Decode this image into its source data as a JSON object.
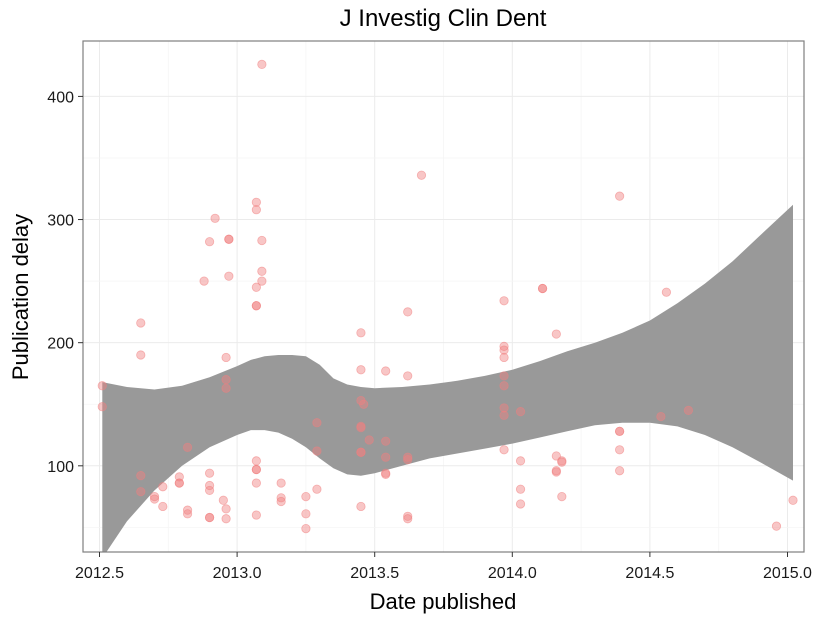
{
  "chart_data": {
    "type": "scatter",
    "title": "J Investig Clin Dent",
    "xlabel": "Date published",
    "ylabel": "Publication delay",
    "xlim": [
      2012.44,
      2015.06
    ],
    "ylim": [
      30,
      445
    ],
    "x_ticks": [
      2012.5,
      2013.0,
      2013.5,
      2014.0,
      2014.5,
      2015.0
    ],
    "x_tick_labels": [
      "2012.5",
      "2013.0",
      "2013.5",
      "2014.0",
      "2014.5",
      "2015.0"
    ],
    "y_ticks": [
      100,
      200,
      300,
      400
    ],
    "y_tick_labels": [
      "100",
      "200",
      "300",
      "400"
    ],
    "grid": true,
    "point_color": "#f08080",
    "band_color": "#999999",
    "points": [
      [
        2012.51,
        165
      ],
      [
        2012.51,
        148
      ],
      [
        2012.65,
        216
      ],
      [
        2012.65,
        190
      ],
      [
        2012.65,
        92
      ],
      [
        2012.65,
        79
      ],
      [
        2012.7,
        75
      ],
      [
        2012.7,
        73
      ],
      [
        2012.73,
        83
      ],
      [
        2012.73,
        67
      ],
      [
        2012.79,
        91
      ],
      [
        2012.79,
        86
      ],
      [
        2012.79,
        86
      ],
      [
        2012.82,
        115
      ],
      [
        2012.82,
        64
      ],
      [
        2012.82,
        61
      ],
      [
        2012.88,
        250
      ],
      [
        2012.9,
        282
      ],
      [
        2012.9,
        94
      ],
      [
        2012.9,
        84
      ],
      [
        2012.9,
        80
      ],
      [
        2012.9,
        58
      ],
      [
        2012.9,
        58
      ],
      [
        2012.92,
        301
      ],
      [
        2012.95,
        72
      ],
      [
        2012.96,
        188
      ],
      [
        2012.96,
        170
      ],
      [
        2012.96,
        163
      ],
      [
        2012.96,
        65
      ],
      [
        2012.96,
        57
      ],
      [
        2012.97,
        284
      ],
      [
        2012.97,
        254
      ],
      [
        2012.97,
        284
      ],
      [
        2013.07,
        314
      ],
      [
        2013.07,
        308
      ],
      [
        2013.07,
        245
      ],
      [
        2013.07,
        230
      ],
      [
        2013.07,
        230
      ],
      [
        2013.07,
        104
      ],
      [
        2013.07,
        97
      ],
      [
        2013.07,
        97
      ],
      [
        2013.07,
        86
      ],
      [
        2013.07,
        60
      ],
      [
        2013.09,
        426
      ],
      [
        2013.09,
        283
      ],
      [
        2013.09,
        258
      ],
      [
        2013.09,
        250
      ],
      [
        2013.16,
        86
      ],
      [
        2013.16,
        74
      ],
      [
        2013.16,
        71
      ],
      [
        2013.25,
        75
      ],
      [
        2013.25,
        61
      ],
      [
        2013.25,
        49
      ],
      [
        2013.29,
        135
      ],
      [
        2013.29,
        112
      ],
      [
        2013.29,
        81
      ],
      [
        2013.45,
        208
      ],
      [
        2013.45,
        178
      ],
      [
        2013.45,
        153
      ],
      [
        2013.45,
        132
      ],
      [
        2013.45,
        131
      ],
      [
        2013.45,
        111
      ],
      [
        2013.45,
        111
      ],
      [
        2013.45,
        67
      ],
      [
        2013.46,
        150
      ],
      [
        2013.48,
        121
      ],
      [
        2013.54,
        177
      ],
      [
        2013.54,
        120
      ],
      [
        2013.54,
        107
      ],
      [
        2013.54,
        94
      ],
      [
        2013.54,
        93
      ],
      [
        2013.62,
        225
      ],
      [
        2013.62,
        173
      ],
      [
        2013.62,
        107
      ],
      [
        2013.62,
        105
      ],
      [
        2013.62,
        59
      ],
      [
        2013.62,
        57
      ],
      [
        2013.67,
        336
      ],
      [
        2013.97,
        234
      ],
      [
        2013.97,
        197
      ],
      [
        2013.97,
        194
      ],
      [
        2013.97,
        188
      ],
      [
        2013.97,
        173
      ],
      [
        2013.97,
        165
      ],
      [
        2013.97,
        147
      ],
      [
        2013.97,
        141
      ],
      [
        2013.97,
        113
      ],
      [
        2014.03,
        144
      ],
      [
        2014.03,
        104
      ],
      [
        2014.03,
        81
      ],
      [
        2014.03,
        69
      ],
      [
        2014.11,
        244
      ],
      [
        2014.11,
        244
      ],
      [
        2014.16,
        207
      ],
      [
        2014.16,
        108
      ],
      [
        2014.16,
        96
      ],
      [
        2014.16,
        95
      ],
      [
        2014.18,
        104
      ],
      [
        2014.18,
        103
      ],
      [
        2014.18,
        75
      ],
      [
        2014.39,
        319
      ],
      [
        2014.39,
        128
      ],
      [
        2014.39,
        128
      ],
      [
        2014.39,
        113
      ],
      [
        2014.39,
        96
      ],
      [
        2014.54,
        140
      ],
      [
        2014.56,
        241
      ],
      [
        2014.64,
        145
      ],
      [
        2014.96,
        51
      ],
      [
        2015.02,
        72
      ]
    ],
    "band_upper": [
      [
        2012.51,
        168
      ],
      [
        2012.6,
        164
      ],
      [
        2012.7,
        162
      ],
      [
        2012.8,
        165
      ],
      [
        2012.9,
        172
      ],
      [
        2013.0,
        181
      ],
      [
        2013.05,
        186
      ],
      [
        2013.1,
        189
      ],
      [
        2013.15,
        190
      ],
      [
        2013.2,
        190
      ],
      [
        2013.25,
        189
      ],
      [
        2013.3,
        182
      ],
      [
        2013.35,
        171
      ],
      [
        2013.4,
        166
      ],
      [
        2013.45,
        164
      ],
      [
        2013.5,
        163
      ],
      [
        2013.6,
        164
      ],
      [
        2013.7,
        166
      ],
      [
        2013.8,
        169
      ],
      [
        2013.9,
        173
      ],
      [
        2014.0,
        178
      ],
      [
        2014.1,
        185
      ],
      [
        2014.2,
        193
      ],
      [
        2014.3,
        200
      ],
      [
        2014.4,
        208
      ],
      [
        2014.5,
        218
      ],
      [
        2014.6,
        232
      ],
      [
        2014.7,
        248
      ],
      [
        2014.8,
        266
      ],
      [
        2014.9,
        287
      ],
      [
        2015.02,
        312
      ]
    ],
    "band_lower": [
      [
        2012.51,
        25
      ],
      [
        2012.6,
        55
      ],
      [
        2012.7,
        80
      ],
      [
        2012.8,
        100
      ],
      [
        2012.9,
        115
      ],
      [
        2013.0,
        125
      ],
      [
        2013.05,
        129
      ],
      [
        2013.1,
        129
      ],
      [
        2013.15,
        127
      ],
      [
        2013.2,
        122
      ],
      [
        2013.25,
        115
      ],
      [
        2013.3,
        106
      ],
      [
        2013.35,
        98
      ],
      [
        2013.4,
        93
      ],
      [
        2013.45,
        92
      ],
      [
        2013.5,
        94
      ],
      [
        2013.6,
        100
      ],
      [
        2013.7,
        106
      ],
      [
        2013.8,
        110
      ],
      [
        2013.9,
        114
      ],
      [
        2014.0,
        118
      ],
      [
        2014.1,
        123
      ],
      [
        2014.2,
        128
      ],
      [
        2014.3,
        133
      ],
      [
        2014.4,
        135
      ],
      [
        2014.5,
        135
      ],
      [
        2014.6,
        132
      ],
      [
        2014.7,
        125
      ],
      [
        2014.8,
        115
      ],
      [
        2014.9,
        103
      ],
      [
        2015.02,
        88
      ]
    ]
  }
}
